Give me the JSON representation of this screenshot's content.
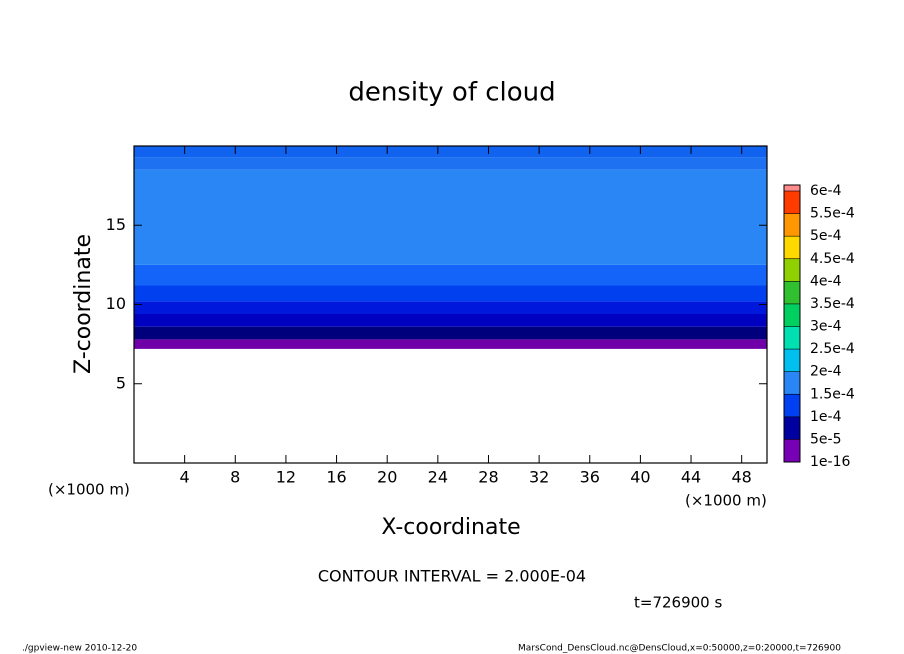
{
  "chart_data": {
    "type": "contour",
    "title": "density of cloud",
    "xlabel": "X-coordinate",
    "ylabel": "Z-coordinate",
    "xunit": "(×1000 m)",
    "yunit": "(×1000 m)",
    "xlim": [
      0,
      50
    ],
    "ylim": [
      0,
      20
    ],
    "xticks": [
      4,
      8,
      12,
      16,
      20,
      24,
      28,
      32,
      36,
      40,
      44,
      48
    ],
    "yticks": [
      5,
      10,
      15
    ],
    "layers": [
      {
        "z": [
          7.2,
          7.8
        ],
        "color": "#7000a8"
      },
      {
        "z": [
          7.8,
          8.6
        ],
        "color": "#00007c"
      },
      {
        "z": [
          8.6,
          9.4
        ],
        "color": "#0000c0"
      },
      {
        "z": [
          9.4,
          10.2
        ],
        "color": "#0018dc"
      },
      {
        "z": [
          10.2,
          11.2
        ],
        "color": "#0040ee"
      },
      {
        "z": [
          11.2,
          12.5
        ],
        "color": "#1464fa"
      },
      {
        "z": [
          12.5,
          18.5
        ],
        "color": "#2a86f4"
      },
      {
        "z": [
          18.5,
          19.3
        ],
        "color": "#1e72f2"
      },
      {
        "z": [
          19.3,
          20
        ],
        "color": "#1262f0"
      }
    ],
    "levels": [
      {
        "value": 1e-16,
        "label": "1e-16"
      },
      {
        "value": 5e-05,
        "label": "5e-5"
      },
      {
        "value": 0.0001,
        "label": "1e-4"
      },
      {
        "value": 0.00015,
        "label": "1.5e-4"
      },
      {
        "value": 0.0002,
        "label": "2e-4"
      },
      {
        "value": 0.00025,
        "label": "2.5e-4"
      },
      {
        "value": 0.0003,
        "label": "3e-4"
      },
      {
        "value": 0.00035,
        "label": "3.5e-4"
      },
      {
        "value": 0.0004,
        "label": "4e-4"
      },
      {
        "value": 0.00045,
        "label": "4.5e-4"
      },
      {
        "value": 0.0005,
        "label": "5e-4"
      },
      {
        "value": 0.00055,
        "label": "5.5e-4"
      },
      {
        "value": 0.0006,
        "label": "6e-4"
      }
    ],
    "level_colors": [
      "#7800b4",
      "#0000a0",
      "#0040f0",
      "#2a86f4",
      "#00c0f0",
      "#00e0b0",
      "#00d060",
      "#30c030",
      "#90d000",
      "#ffd800",
      "#ff9800",
      "#ff3c00"
    ],
    "top_color": "#ff8c8c",
    "contour_interval": "CONTOUR INTERVAL = 2.000E-04",
    "time_label": "t=726900 s",
    "footer_left": "./gpview-new  2010-12-20",
    "footer_right": "MarsCond_DensCloud.nc@DensCloud,x=0:50000,z=0:20000,t=726900"
  }
}
